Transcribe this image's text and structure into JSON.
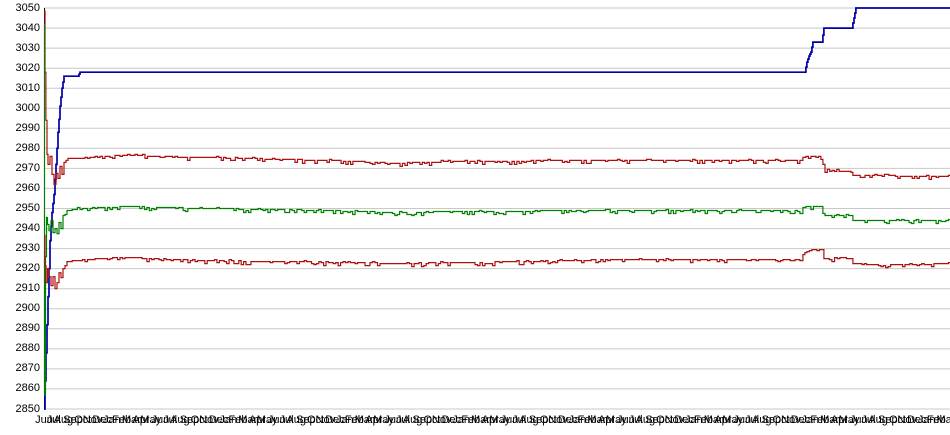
{
  "chart_data": {
    "type": "line",
    "title": "",
    "grid": true,
    "legend": null,
    "ylim": [
      2850,
      3050
    ],
    "yticks": [
      3050,
      3040,
      3030,
      3020,
      3010,
      3000,
      2990,
      2980,
      2970,
      2960,
      2950,
      2940,
      2930,
      2920,
      2910,
      2900,
      2890,
      2880,
      2870,
      2860,
      2850
    ],
    "colors": {
      "background": "#ffffff",
      "grid": "#c8c8c8",
      "axis": "#000000",
      "text": "#000000",
      "blue_series": "#0000A8",
      "red_series": "#AA1111",
      "green_series": "#008000"
    },
    "x_axis": {
      "unit": "month",
      "labels": [
        "Jun",
        "Jul",
        "Aug",
        "Sep",
        "Oct",
        "Nov",
        "Dec",
        "Jan",
        "Feb",
        "Mar",
        "Apr",
        "May",
        "Jun",
        "Jul",
        "Aug",
        "Sep",
        "Oct",
        "Nov",
        "Dec",
        "Jan",
        "Feb",
        "Mar",
        "Apr",
        "May",
        "Jun",
        "Jul",
        "Aug",
        "Sep",
        "Oct",
        "Nov",
        "Dec",
        "Jan",
        "Feb",
        "Mar",
        "Apr",
        "May",
        "Jun",
        "Jul",
        "Aug",
        "Sep",
        "Oct",
        "Nov",
        "Dec",
        "Jan",
        "Feb",
        "Mar",
        "Apr",
        "May",
        "Jun",
        "Jul",
        "Aug",
        "Sep",
        "Oct",
        "Nov",
        "Dec",
        "Jan",
        "Feb",
        "Mar",
        "Apr",
        "May",
        "Jun",
        "Jul",
        "Aug",
        "Sep",
        "Oct",
        "Nov",
        "Dec",
        "Jan",
        "Feb",
        "Mar",
        "Apr",
        "May",
        "Jun",
        "Jul",
        "Aug",
        "Sep",
        "Oct",
        "Nov",
        "Dec",
        "Jan",
        "Feb",
        "Mar",
        "Apr",
        "May",
        "Jun",
        "Jul",
        "Aug",
        "Sep",
        "Oct",
        "Nov",
        "Dec",
        "Jan",
        "Feb",
        "Mar"
      ]
    },
    "series": [
      {
        "name": "blue-step-series",
        "color": "#0000A8",
        "width": 1.7,
        "noise": 0,
        "seed": 3,
        "points": [
          [
            0,
            2850
          ],
          [
            0.21,
            2878
          ],
          [
            0.41,
            2906
          ],
          [
            0.62,
            2934
          ],
          [
            0.82,
            2948
          ],
          [
            1.03,
            2957
          ],
          [
            1.24,
            2972
          ],
          [
            1.44,
            2988
          ],
          [
            1.65,
            3001
          ],
          [
            1.86,
            3010
          ],
          [
            2.06,
            3016
          ],
          [
            3.51,
            3016
          ],
          [
            3.71,
            3018
          ],
          [
            78.45,
            3018
          ],
          [
            78.66,
            3023
          ],
          [
            78.87,
            3026
          ],
          [
            79.07,
            3028
          ],
          [
            79.28,
            3033
          ],
          [
            80.21,
            3033
          ],
          [
            80.41,
            3040
          ],
          [
            83.3,
            3040
          ],
          [
            83.51,
            3045
          ],
          [
            83.71,
            3050
          ],
          [
            93.5,
            3050
          ]
        ]
      },
      {
        "name": "red-upper-series",
        "color": "#AA1111",
        "width": 1.2,
        "noise": 1,
        "seed": 7,
        "points": [
          [
            0,
            3050
          ],
          [
            0.1,
            3018
          ],
          [
            0.2,
            2994
          ],
          [
            0.31,
            2977
          ],
          [
            0.41,
            2973
          ],
          [
            0.62,
            2976
          ],
          [
            0.82,
            2967
          ],
          [
            1.03,
            2963
          ],
          [
            1.24,
            2969
          ],
          [
            1.44,
            2965
          ],
          [
            1.65,
            2971
          ],
          [
            1.86,
            2967
          ],
          [
            2.06,
            2973
          ],
          [
            2.47,
            2975
          ],
          [
            3.71,
            2975
          ],
          [
            5.77,
            2976
          ],
          [
            8.87,
            2976.5
          ],
          [
            11.96,
            2976
          ],
          [
            16.08,
            2975.5
          ],
          [
            20.21,
            2975
          ],
          [
            24.33,
            2974.5
          ],
          [
            28.45,
            2974
          ],
          [
            32.58,
            2973.5
          ],
          [
            35.67,
            2972.5
          ],
          [
            38.76,
            2973
          ],
          [
            42.89,
            2973.5
          ],
          [
            47.01,
            2973.5
          ],
          [
            53.2,
            2974
          ],
          [
            59.38,
            2974
          ],
          [
            67.63,
            2974
          ],
          [
            77.94,
            2974
          ],
          [
            78.25,
            2975.5
          ],
          [
            78.56,
            2976
          ],
          [
            80.1,
            2976
          ],
          [
            80.31,
            2972
          ],
          [
            80.52,
            2969
          ],
          [
            83.2,
            2968.5
          ],
          [
            83.4,
            2966.5
          ],
          [
            86.9,
            2966.5
          ],
          [
            87.53,
            2966
          ],
          [
            92.99,
            2966
          ],
          [
            93.5,
            2967
          ]
        ]
      },
      {
        "name": "green-mid-series",
        "color": "#008000",
        "width": 1.2,
        "noise": 1,
        "seed": 13,
        "points": [
          [
            0,
            3043
          ],
          [
            0.05,
            2857
          ],
          [
            0.15,
            2926
          ],
          [
            0.26,
            2947
          ],
          [
            0.36,
            2943
          ],
          [
            0.52,
            2939
          ],
          [
            0.72,
            2944
          ],
          [
            0.93,
            2938
          ],
          [
            1.13,
            2941
          ],
          [
            1.34,
            2937
          ],
          [
            1.55,
            2943
          ],
          [
            1.75,
            2940
          ],
          [
            1.96,
            2946
          ],
          [
            2.37,
            2949
          ],
          [
            3.71,
            2950
          ],
          [
            5.77,
            2950.5
          ],
          [
            8.87,
            2951
          ],
          [
            16.08,
            2950
          ],
          [
            24.33,
            2949.5
          ],
          [
            32.58,
            2948.5
          ],
          [
            35.67,
            2948
          ],
          [
            42.89,
            2948.5
          ],
          [
            59.38,
            2949
          ],
          [
            77.94,
            2949
          ],
          [
            78.25,
            2950.5
          ],
          [
            78.56,
            2951
          ],
          [
            80.1,
            2951
          ],
          [
            80.31,
            2948
          ],
          [
            80.52,
            2946.5
          ],
          [
            83.2,
            2946.5
          ],
          [
            83.4,
            2944
          ],
          [
            86.9,
            2944
          ],
          [
            92.99,
            2944
          ],
          [
            93.5,
            2944.5
          ]
        ]
      },
      {
        "name": "red-lower-series",
        "color": "#AA1111",
        "width": 1.2,
        "noise": 1,
        "seed": 21,
        "points": [
          [
            0,
            2937
          ],
          [
            0.1,
            2922
          ],
          [
            0.21,
            2914
          ],
          [
            0.36,
            2920
          ],
          [
            0.52,
            2916
          ],
          [
            0.72,
            2911
          ],
          [
            0.93,
            2916
          ],
          [
            1.13,
            2910
          ],
          [
            1.34,
            2914
          ],
          [
            1.55,
            2918
          ],
          [
            1.75,
            2915
          ],
          [
            1.96,
            2921
          ],
          [
            2.37,
            2923.5
          ],
          [
            3.71,
            2924
          ],
          [
            5.77,
            2925
          ],
          [
            8.87,
            2925.5
          ],
          [
            16.08,
            2924
          ],
          [
            24.33,
            2923.5
          ],
          [
            32.58,
            2923
          ],
          [
            35.67,
            2922.5
          ],
          [
            42.89,
            2923
          ],
          [
            47.01,
            2923.3
          ],
          [
            53.2,
            2924
          ],
          [
            59.38,
            2924.5
          ],
          [
            77.94,
            2924.5
          ],
          [
            78.25,
            2927
          ],
          [
            78.66,
            2929.5
          ],
          [
            80.21,
            2929.5
          ],
          [
            80.41,
            2925
          ],
          [
            81.24,
            2924.5
          ],
          [
            82.06,
            2925.5
          ],
          [
            83.2,
            2925
          ],
          [
            83.4,
            2922.5
          ],
          [
            85.05,
            2922
          ],
          [
            92.99,
            2922.3
          ],
          [
            93.5,
            2924
          ]
        ]
      }
    ]
  }
}
